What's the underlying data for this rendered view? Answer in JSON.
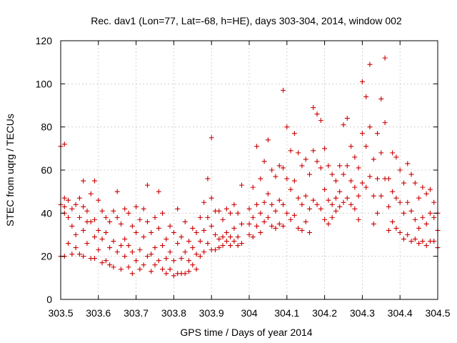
{
  "chart_data": {
    "type": "scatter",
    "title": "Rec. dav1 (Lon=77, Lat=-68, h=HE), days 303-304, 2014, window 002",
    "xlabel": "GPS time / Days of year 2014",
    "ylabel": "STEC from uqrg / TECUs",
    "xlim": [
      303.5,
      304.5
    ],
    "ylim": [
      0,
      120
    ],
    "xticks": [
      303.5,
      303.6,
      303.7,
      303.8,
      303.9,
      304.0,
      304.1,
      304.2,
      304.3,
      304.4,
      304.5
    ],
    "xtick_labels": [
      "303.5",
      "303.6",
      "303.7",
      "303.8",
      "303.9",
      "304",
      "304.1",
      "304.2",
      "304.3",
      "304.4",
      "304.5"
    ],
    "yticks": [
      0,
      20,
      40,
      60,
      80,
      100,
      120
    ],
    "ytick_labels": [
      "0",
      "20",
      "40",
      "60",
      "80",
      "100",
      "120"
    ],
    "grid": true,
    "marker": "plus",
    "color": "#cc0000",
    "series": [
      {
        "points": [
          [
            303.5,
            44
          ],
          [
            303.5,
            20
          ],
          [
            303.5,
            71
          ],
          [
            303.51,
            72
          ],
          [
            303.51,
            43
          ],
          [
            303.51,
            47
          ],
          [
            303.51,
            40
          ],
          [
            303.51,
            20
          ],
          [
            303.52,
            38
          ],
          [
            303.52,
            46
          ],
          [
            303.52,
            26
          ],
          [
            303.53,
            42
          ],
          [
            303.53,
            34
          ],
          [
            303.53,
            21
          ],
          [
            303.54,
            44
          ],
          [
            303.54,
            30
          ],
          [
            303.54,
            24
          ],
          [
            303.55,
            47
          ],
          [
            303.55,
            38
          ],
          [
            303.55,
            21
          ],
          [
            303.56,
            55
          ],
          [
            303.56,
            43
          ],
          [
            303.56,
            32
          ],
          [
            303.56,
            20
          ],
          [
            303.57,
            41
          ],
          [
            303.57,
            36
          ],
          [
            303.57,
            26
          ],
          [
            303.58,
            49
          ],
          [
            303.58,
            36
          ],
          [
            303.58,
            19
          ],
          [
            303.59,
            55
          ],
          [
            303.59,
            37
          ],
          [
            303.59,
            29
          ],
          [
            303.59,
            19
          ],
          [
            303.6,
            46
          ],
          [
            303.6,
            32
          ],
          [
            303.6,
            23
          ],
          [
            303.61,
            41
          ],
          [
            303.61,
            28
          ],
          [
            303.61,
            17
          ],
          [
            303.62,
            38
          ],
          [
            303.62,
            31
          ],
          [
            303.62,
            18
          ],
          [
            303.63,
            36
          ],
          [
            303.63,
            24
          ],
          [
            303.63,
            16
          ],
          [
            303.64,
            41
          ],
          [
            303.64,
            27
          ],
          [
            303.64,
            15
          ],
          [
            303.65,
            50
          ],
          [
            303.65,
            38
          ],
          [
            303.65,
            22
          ],
          [
            303.66,
            35
          ],
          [
            303.66,
            25
          ],
          [
            303.66,
            14
          ],
          [
            303.67,
            42
          ],
          [
            303.67,
            28
          ],
          [
            303.67,
            20
          ],
          [
            303.68,
            40
          ],
          [
            303.68,
            25
          ],
          [
            303.68,
            15
          ],
          [
            303.69,
            34
          ],
          [
            303.69,
            22
          ],
          [
            303.69,
            12
          ],
          [
            303.7,
            43
          ],
          [
            303.7,
            31
          ],
          [
            303.7,
            18
          ],
          [
            303.71,
            37
          ],
          [
            303.71,
            23
          ],
          [
            303.71,
            14
          ],
          [
            303.72,
            42
          ],
          [
            303.72,
            29
          ],
          [
            303.72,
            16
          ],
          [
            303.73,
            53
          ],
          [
            303.73,
            36
          ],
          [
            303.73,
            20
          ],
          [
            303.74,
            31
          ],
          [
            303.74,
            21
          ],
          [
            303.74,
            13
          ],
          [
            303.75,
            38
          ],
          [
            303.75,
            24
          ],
          [
            303.75,
            16
          ],
          [
            303.76,
            50
          ],
          [
            303.76,
            33
          ],
          [
            303.76,
            18
          ],
          [
            303.77,
            40
          ],
          [
            303.77,
            25
          ],
          [
            303.77,
            14
          ],
          [
            303.78,
            28
          ],
          [
            303.78,
            19
          ],
          [
            303.78,
            12
          ],
          [
            303.79,
            34
          ],
          [
            303.79,
            22
          ],
          [
            303.79,
            14
          ],
          [
            303.8,
            31
          ],
          [
            303.8,
            18
          ],
          [
            303.8,
            11
          ],
          [
            303.81,
            42
          ],
          [
            303.81,
            26
          ],
          [
            303.81,
            12
          ],
          [
            303.82,
            29
          ],
          [
            303.82,
            19
          ],
          [
            303.82,
            12
          ],
          [
            303.83,
            36
          ],
          [
            303.83,
            22
          ],
          [
            303.83,
            12
          ],
          [
            303.84,
            27
          ],
          [
            303.84,
            18
          ],
          [
            303.84,
            13
          ],
          [
            303.85,
            33
          ],
          [
            303.85,
            24
          ],
          [
            303.85,
            16
          ],
          [
            303.86,
            31
          ],
          [
            303.86,
            21
          ],
          [
            303.86,
            14
          ],
          [
            303.87,
            38
          ],
          [
            303.87,
            27
          ],
          [
            303.87,
            20
          ],
          [
            303.88,
            45
          ],
          [
            303.88,
            32
          ],
          [
            303.88,
            22
          ],
          [
            303.89,
            56
          ],
          [
            303.89,
            38
          ],
          [
            303.89,
            26
          ],
          [
            303.9,
            75
          ],
          [
            303.9,
            47
          ],
          [
            303.9,
            34
          ],
          [
            303.9,
            23
          ],
          [
            303.91,
            41
          ],
          [
            303.91,
            30
          ],
          [
            303.91,
            23
          ],
          [
            303.92,
            41
          ],
          [
            303.92,
            28
          ],
          [
            303.92,
            24
          ],
          [
            303.93,
            37
          ],
          [
            303.93,
            29
          ],
          [
            303.93,
            25
          ],
          [
            303.94,
            42
          ],
          [
            303.94,
            31
          ],
          [
            303.94,
            27
          ],
          [
            303.95,
            40
          ],
          [
            303.95,
            29
          ],
          [
            303.95,
            25
          ],
          [
            303.96,
            44
          ],
          [
            303.96,
            33
          ],
          [
            303.96,
            27
          ],
          [
            303.97,
            40
          ],
          [
            303.97,
            29
          ],
          [
            303.97,
            25
          ],
          [
            303.98,
            53
          ],
          [
            303.98,
            35
          ],
          [
            303.98,
            26
          ],
          [
            304.0,
            42
          ],
          [
            304.0,
            35
          ],
          [
            304.0,
            30
          ],
          [
            304.01,
            52
          ],
          [
            304.01,
            38
          ],
          [
            304.01,
            29
          ],
          [
            304.02,
            71
          ],
          [
            304.02,
            44
          ],
          [
            304.02,
            34
          ],
          [
            304.03,
            56
          ],
          [
            304.03,
            40
          ],
          [
            304.03,
            31
          ],
          [
            304.04,
            64
          ],
          [
            304.04,
            45
          ],
          [
            304.04,
            36
          ],
          [
            304.05,
            74
          ],
          [
            304.05,
            49
          ],
          [
            304.05,
            38
          ],
          [
            304.06,
            60
          ],
          [
            304.06,
            44
          ],
          [
            304.06,
            34
          ],
          [
            304.07,
            57
          ],
          [
            304.07,
            41
          ],
          [
            304.07,
            33
          ],
          [
            304.08,
            62
          ],
          [
            304.08,
            46
          ],
          [
            304.08,
            35
          ],
          [
            304.09,
            97
          ],
          [
            304.09,
            61
          ],
          [
            304.09,
            44
          ],
          [
            304.09,
            34
          ],
          [
            304.1,
            80
          ],
          [
            304.1,
            56
          ],
          [
            304.1,
            40
          ],
          [
            304.11,
            69
          ],
          [
            304.11,
            51
          ],
          [
            304.11,
            37
          ],
          [
            304.12,
            77
          ],
          [
            304.12,
            55
          ],
          [
            304.12,
            39
          ],
          [
            304.13,
            68
          ],
          [
            304.13,
            47
          ],
          [
            304.13,
            33
          ],
          [
            304.14,
            62
          ],
          [
            304.14,
            44
          ],
          [
            304.14,
            32
          ],
          [
            304.15,
            65
          ],
          [
            304.15,
            48
          ],
          [
            304.15,
            36
          ],
          [
            304.16,
            58
          ],
          [
            304.16,
            42
          ],
          [
            304.16,
            31
          ],
          [
            304.17,
            89
          ],
          [
            304.17,
            69
          ],
          [
            304.17,
            46
          ],
          [
            304.18,
            86
          ],
          [
            304.18,
            64
          ],
          [
            304.18,
            44
          ],
          [
            304.19,
            83
          ],
          [
            304.19,
            61
          ],
          [
            304.19,
            42
          ],
          [
            304.2,
            70
          ],
          [
            304.2,
            51
          ],
          [
            304.2,
            37
          ],
          [
            304.21,
            62
          ],
          [
            304.21,
            46
          ],
          [
            304.21,
            35
          ],
          [
            304.22,
            58
          ],
          [
            304.22,
            44
          ],
          [
            304.22,
            38
          ],
          [
            304.23,
            55
          ],
          [
            304.23,
            47
          ],
          [
            304.23,
            41
          ],
          [
            304.24,
            62
          ],
          [
            304.24,
            50
          ],
          [
            304.24,
            43
          ],
          [
            304.25,
            81
          ],
          [
            304.25,
            58
          ],
          [
            304.25,
            45
          ],
          [
            304.26,
            84
          ],
          [
            304.26,
            62
          ],
          [
            304.26,
            47
          ],
          [
            304.27,
            71
          ],
          [
            304.27,
            55
          ],
          [
            304.27,
            44
          ],
          [
            304.28,
            66
          ],
          [
            304.28,
            52
          ],
          [
            304.28,
            42
          ],
          [
            304.29,
            61
          ],
          [
            304.29,
            48
          ],
          [
            304.29,
            37
          ],
          [
            304.3,
            101
          ],
          [
            304.3,
            77
          ],
          [
            304.3,
            54
          ],
          [
            304.31,
            94
          ],
          [
            304.31,
            71
          ],
          [
            304.31,
            52
          ],
          [
            304.32,
            109
          ],
          [
            304.32,
            80
          ],
          [
            304.32,
            57
          ],
          [
            304.33,
            65
          ],
          [
            304.33,
            48
          ],
          [
            304.33,
            35
          ],
          [
            304.34,
            77
          ],
          [
            304.34,
            56
          ],
          [
            304.34,
            40
          ],
          [
            304.35,
            93
          ],
          [
            304.35,
            68
          ],
          [
            304.35,
            48
          ],
          [
            304.36,
            112
          ],
          [
            304.36,
            82
          ],
          [
            304.36,
            56
          ],
          [
            304.37,
            56
          ],
          [
            304.37,
            43
          ],
          [
            304.37,
            32
          ],
          [
            304.38,
            68
          ],
          [
            304.38,
            50
          ],
          [
            304.38,
            36
          ],
          [
            304.39,
            66
          ],
          [
            304.39,
            47
          ],
          [
            304.39,
            33
          ],
          [
            304.4,
            60
          ],
          [
            304.4,
            45
          ],
          [
            304.4,
            31
          ],
          [
            304.41,
            54
          ],
          [
            304.41,
            40
          ],
          [
            304.41,
            28
          ],
          [
            304.42,
            63
          ],
          [
            304.42,
            45
          ],
          [
            304.42,
            30
          ],
          [
            304.43,
            58
          ],
          [
            304.43,
            41
          ],
          [
            304.43,
            27
          ],
          [
            304.44,
            54
          ],
          [
            304.44,
            37
          ],
          [
            304.44,
            28
          ],
          [
            304.45,
            47
          ],
          [
            304.45,
            33
          ],
          [
            304.45,
            26
          ],
          [
            304.46,
            52
          ],
          [
            304.46,
            38
          ],
          [
            304.46,
            27
          ],
          [
            304.47,
            49
          ],
          [
            304.47,
            35
          ],
          [
            304.47,
            25
          ],
          [
            304.48,
            51
          ],
          [
            304.48,
            40
          ],
          [
            304.48,
            27
          ],
          [
            304.49,
            45
          ],
          [
            304.49,
            38
          ],
          [
            304.49,
            27
          ],
          [
            304.5,
            40
          ],
          [
            304.5,
            32
          ],
          [
            304.5,
            24
          ]
        ]
      }
    ]
  }
}
